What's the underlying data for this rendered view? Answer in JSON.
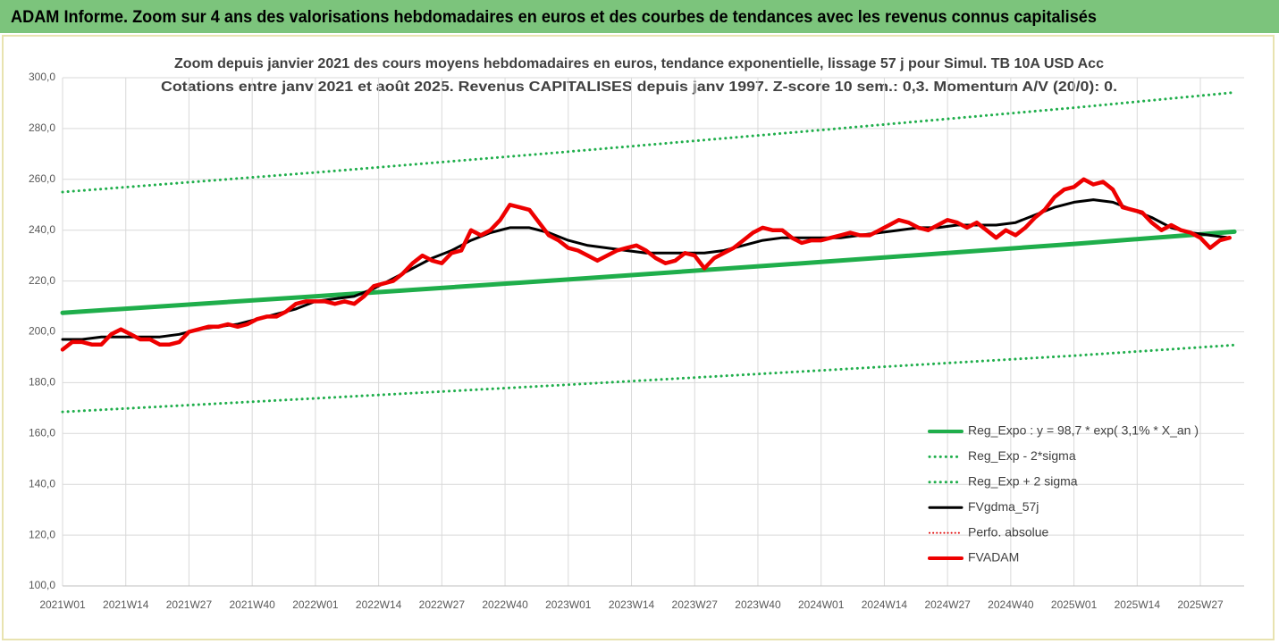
{
  "header": {
    "title": "ADAM Informe. Zoom sur 4 ans des valorisations hebdomadaires en euros et des courbes de tendances avec les revenus connus capitalisés"
  },
  "chart_data": {
    "type": "line",
    "title": "Zoom depuis janvier 2021 des cours moyens hebdomadaires en euros, tendance exponentielle, lissage 57 j pour Simul. TB 10A USD Acc",
    "subtitle": "Cotations entre janv 2021 et août 2025. Revenus CAPITALISES depuis janv 1997. Z-score 10 sem.: 0,3. Momentum A/V (20/0): 0.",
    "xlim": [
      0,
      243
    ],
    "xticks": [
      {
        "value": 0,
        "label": "2021W01"
      },
      {
        "value": 13,
        "label": "2021W14"
      },
      {
        "value": 26,
        "label": "2021W27"
      },
      {
        "value": 39,
        "label": "2021W40"
      },
      {
        "value": 52,
        "label": "2022W01"
      },
      {
        "value": 65,
        "label": "2022W14"
      },
      {
        "value": 78,
        "label": "2022W27"
      },
      {
        "value": 91,
        "label": "2022W40"
      },
      {
        "value": 104,
        "label": "2023W01"
      },
      {
        "value": 117,
        "label": "2023W14"
      },
      {
        "value": 130,
        "label": "2023W27"
      },
      {
        "value": 143,
        "label": "2023W40"
      },
      {
        "value": 156,
        "label": "2024W01"
      },
      {
        "value": 169,
        "label": "2024W14"
      },
      {
        "value": 182,
        "label": "2024W27"
      },
      {
        "value": 195,
        "label": "2024W40"
      },
      {
        "value": 208,
        "label": "2025W01"
      },
      {
        "value": 221,
        "label": "2025W14"
      },
      {
        "value": 234,
        "label": "2025W27"
      }
    ],
    "ylim": [
      100,
      300
    ],
    "yticks": [
      {
        "value": 100,
        "label": "100,0"
      },
      {
        "value": 120,
        "label": "120,0"
      },
      {
        "value": 140,
        "label": "140,0"
      },
      {
        "value": 160,
        "label": "160,0"
      },
      {
        "value": 180,
        "label": "180,0"
      },
      {
        "value": 200,
        "label": "200,0"
      },
      {
        "value": 220,
        "label": "220,0"
      },
      {
        "value": 240,
        "label": "240,0"
      },
      {
        "value": 260,
        "label": "260,0"
      },
      {
        "value": 280,
        "label": "280,0"
      },
      {
        "value": 300,
        "label": "300,0"
      }
    ],
    "grid": true,
    "legend": "bottom-right",
    "series": [
      {
        "name": "Reg_Expo : y = 98,7 * exp( 3,1% *  X_an )",
        "color": "#1fae4b",
        "dash": "solid",
        "width": 5,
        "x": [
          0,
          52,
          104,
          156,
          208,
          241
        ],
        "values": [
          207.5,
          214.0,
          220.6,
          227.5,
          234.6,
          239.4
        ]
      },
      {
        "name": "Reg_Exp - 2*sigma",
        "color": "#1fae4b",
        "dash": "dotted",
        "width": 3,
        "x": [
          0,
          52,
          104,
          156,
          208,
          241
        ],
        "values": [
          168.5,
          173.8,
          179.2,
          184.8,
          190.6,
          194.8
        ]
      },
      {
        "name": "Reg_Exp + 2 sigma",
        "color": "#1fae4b",
        "dash": "dotted",
        "width": 3,
        "x": [
          0,
          52,
          104,
          156,
          208,
          241
        ],
        "values": [
          255,
          262.7,
          270.9,
          279.4,
          288.2,
          294.2
        ]
      },
      {
        "name": "FVgdma_57j",
        "color": "#000000",
        "dash": "solid",
        "width": 3,
        "x": [
          0,
          4,
          8,
          12,
          16,
          20,
          24,
          28,
          32,
          36,
          40,
          44,
          48,
          52,
          56,
          60,
          64,
          68,
          72,
          76,
          80,
          84,
          88,
          92,
          96,
          100,
          104,
          108,
          112,
          116,
          120,
          124,
          128,
          132,
          136,
          140,
          144,
          148,
          152,
          156,
          160,
          164,
          168,
          172,
          176,
          180,
          184,
          188,
          192,
          196,
          200,
          204,
          208,
          212,
          216,
          220,
          224,
          228,
          232,
          236,
          240
        ],
        "values": [
          197,
          197,
          198,
          198,
          198,
          198,
          199,
          201,
          202,
          203,
          205,
          207,
          209,
          212,
          213,
          214,
          217,
          221,
          225,
          229,
          232,
          236,
          239,
          241,
          241,
          239,
          236,
          234,
          233,
          232,
          231,
          231,
          231,
          231,
          232,
          234,
          236,
          237,
          237,
          237,
          237,
          238,
          239,
          240,
          241,
          241,
          242,
          242,
          242,
          243,
          246,
          249,
          251,
          252,
          251,
          248,
          245,
          241,
          239,
          238,
          237
        ]
      },
      {
        "name": "Perfo. absolue",
        "color": "#e00000",
        "dash": "dotted",
        "width": 2,
        "x": [],
        "values": []
      },
      {
        "name": "FVADAM",
        "color": "#ee0000",
        "dash": "solid",
        "width": 4.5,
        "x": [
          0,
          2,
          4,
          6,
          8,
          10,
          12,
          14,
          16,
          18,
          20,
          22,
          24,
          26,
          28,
          30,
          32,
          34,
          36,
          38,
          40,
          42,
          44,
          46,
          48,
          50,
          52,
          54,
          56,
          58,
          60,
          62,
          64,
          66,
          68,
          70,
          72,
          74,
          76,
          78,
          80,
          82,
          84,
          86,
          88,
          90,
          92,
          94,
          96,
          98,
          100,
          102,
          104,
          106,
          108,
          110,
          112,
          114,
          116,
          118,
          120,
          122,
          124,
          126,
          128,
          130,
          132,
          134,
          136,
          138,
          140,
          142,
          144,
          146,
          148,
          150,
          152,
          154,
          156,
          158,
          160,
          162,
          164,
          166,
          168,
          170,
          172,
          174,
          176,
          178,
          180,
          182,
          184,
          186,
          188,
          190,
          192,
          194,
          196,
          198,
          200,
          202,
          204,
          206,
          208,
          210,
          212,
          214,
          216,
          218,
          220,
          222,
          224,
          226,
          228,
          230,
          232,
          234,
          236,
          238,
          240
        ],
        "values": [
          193,
          196,
          196,
          195,
          195,
          199,
          201,
          199,
          197,
          197,
          195,
          195,
          196,
          200,
          201,
          202,
          202,
          203,
          202,
          203,
          205,
          206,
          206,
          208,
          211,
          212,
          212,
          212,
          211,
          212,
          211,
          214,
          218,
          219,
          220,
          223,
          227,
          230,
          228,
          227,
          231,
          232,
          240,
          238,
          240,
          244,
          250,
          249,
          248,
          243,
          238,
          236,
          233,
          232,
          230,
          228,
          230,
          232,
          233,
          234,
          232,
          229,
          227,
          228,
          231,
          230,
          225,
          229,
          231,
          233,
          236,
          239,
          241,
          240,
          240,
          237,
          235,
          236,
          236,
          237,
          238,
          239,
          238,
          238,
          240,
          242,
          244,
          243,
          241,
          240,
          242,
          244,
          243,
          241,
          243,
          240,
          237,
          240,
          238,
          241,
          245,
          248,
          253,
          256,
          257,
          260,
          258,
          259,
          256,
          249,
          248,
          247,
          243,
          240,
          242,
          240,
          239,
          237,
          233,
          236,
          237
        ]
      }
    ]
  }
}
